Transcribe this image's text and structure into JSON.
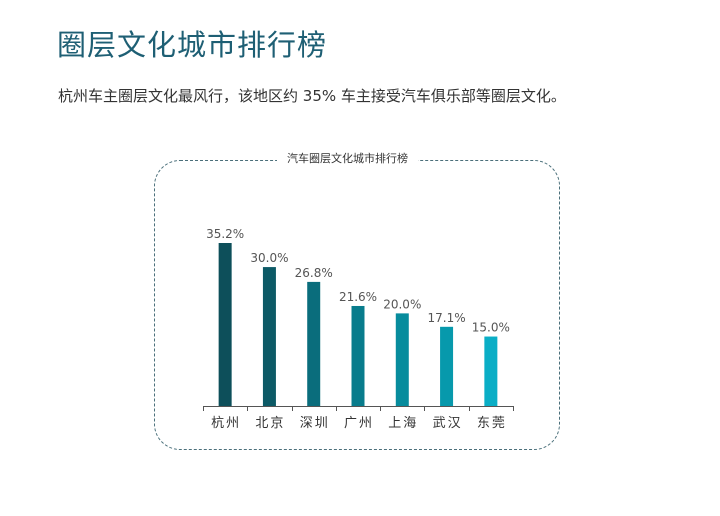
{
  "page": {
    "title": "圈层文化城市排行榜",
    "summary": "杭州车主圈层文化最风行，该地区约 35% 车主接受汽车俱乐部等圈层文化。"
  },
  "chart_data": {
    "type": "bar",
    "title": "汽车圈层文化城市排行榜",
    "categories": [
      "杭州",
      "北京",
      "深圳",
      "广州",
      "上海",
      "武汉",
      "东莞"
    ],
    "values": [
      35.2,
      30.0,
      26.8,
      21.6,
      20.0,
      17.1,
      15.0
    ],
    "value_labels": [
      "35.2%",
      "30.0%",
      "26.8%",
      "21.6%",
      "20.0%",
      "17.1%",
      "15.0%"
    ],
    "xlabel": "",
    "ylabel": "",
    "ylim": [
      0,
      40
    ],
    "grid": false,
    "legend": "none",
    "colors": [
      "#0d4f5a",
      "#0c5a66",
      "#0a6d7c",
      "#087c8c",
      "#078c9d",
      "#0799ac",
      "#0aaec6"
    ]
  }
}
